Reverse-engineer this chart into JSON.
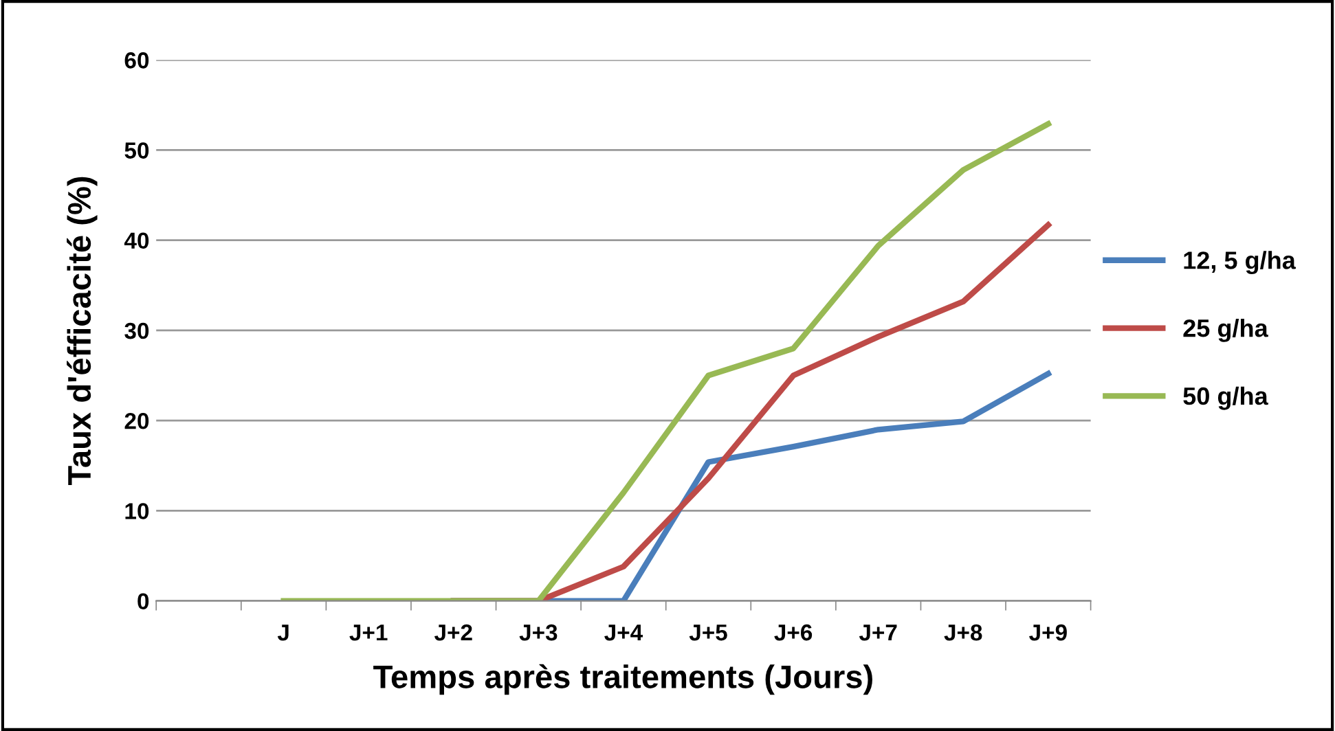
{
  "chart_data": {
    "type": "line",
    "xlabel": "Temps après traitements (Jours)",
    "ylabel": "Taux d'éfficacité (%)",
    "categories": [
      null,
      "J",
      "J+1",
      "J+2",
      "J+3",
      "J+4",
      "J+5",
      "J+6",
      "J+7",
      "J+8",
      "J+9"
    ],
    "series": [
      {
        "name": "12, 5 g/ha",
        "color": "#4a7ebb",
        "values": [
          null,
          null,
          null,
          0,
          0,
          0,
          15.4,
          17.1,
          19,
          19.9,
          25.2
        ]
      },
      {
        "name": "25 g/ha",
        "color": "#be4b48",
        "values": [
          null,
          null,
          null,
          0,
          0,
          3.8,
          13.6,
          25,
          29.3,
          33.2,
          41.7
        ]
      },
      {
        "name": "50 g/ha",
        "color": "#98b954",
        "values": [
          null,
          0,
          0,
          0,
          0,
          12,
          25,
          28,
          39.4,
          47.8,
          52.9
        ]
      }
    ],
    "ylim": [
      0,
      60
    ],
    "yticks": [
      0,
      10,
      20,
      30,
      40,
      50,
      60
    ],
    "grid": "y",
    "legend": "right",
    "marker": "none",
    "line_style": "solid"
  }
}
